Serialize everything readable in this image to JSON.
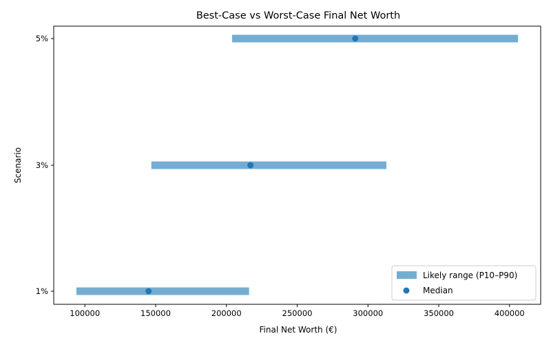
{
  "chart_data": {
    "type": "range",
    "title": "Best-Case vs Worst-Case Final Net Worth",
    "xlabel": "Final Net Worth (€)",
    "ylabel": "Scenario",
    "categories": [
      "1%",
      "3%",
      "5%"
    ],
    "series": [
      {
        "name": "Likely range (P10–P90)",
        "kind": "range",
        "low": [
          94000,
          147000,
          204000
        ],
        "high": [
          216000,
          313000,
          406000
        ]
      },
      {
        "name": "Median",
        "kind": "point",
        "values": [
          145000,
          217000,
          291000
        ]
      }
    ],
    "xlim": [
      78000,
      422000
    ],
    "xticks": [
      100000,
      150000,
      200000,
      250000,
      300000,
      350000,
      400000
    ],
    "grid": false,
    "legend_position": "lower right",
    "colors": {
      "range": "#74add1",
      "median": "#1f77b4"
    }
  }
}
